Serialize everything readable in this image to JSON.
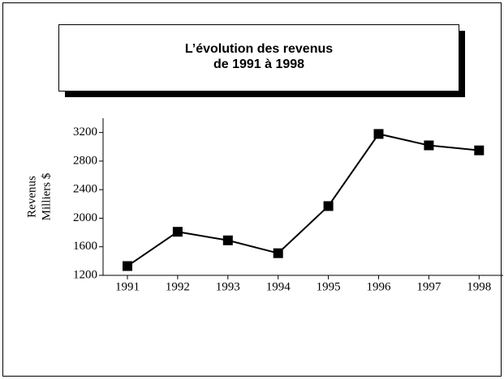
{
  "chart_data": {
    "type": "line",
    "title": [
      "L’évolution des revenus",
      "de 1991 à 1998"
    ],
    "ylabel": [
      "Revenus",
      "Milliers $"
    ],
    "categories": [
      "1991",
      "1992",
      "1993",
      "1994",
      "1995",
      "1996",
      "1997",
      "1998"
    ],
    "series": [
      {
        "color": "#000000",
        "values": [
          1330,
          1810,
          1690,
          1510,
          2170,
          3180,
          3020,
          2950
        ]
      }
    ],
    "ylim": [
      1200,
      3400
    ],
    "yticks": [
      1200,
      1600,
      2000,
      2400,
      2800,
      3200
    ],
    "grid": false
  }
}
